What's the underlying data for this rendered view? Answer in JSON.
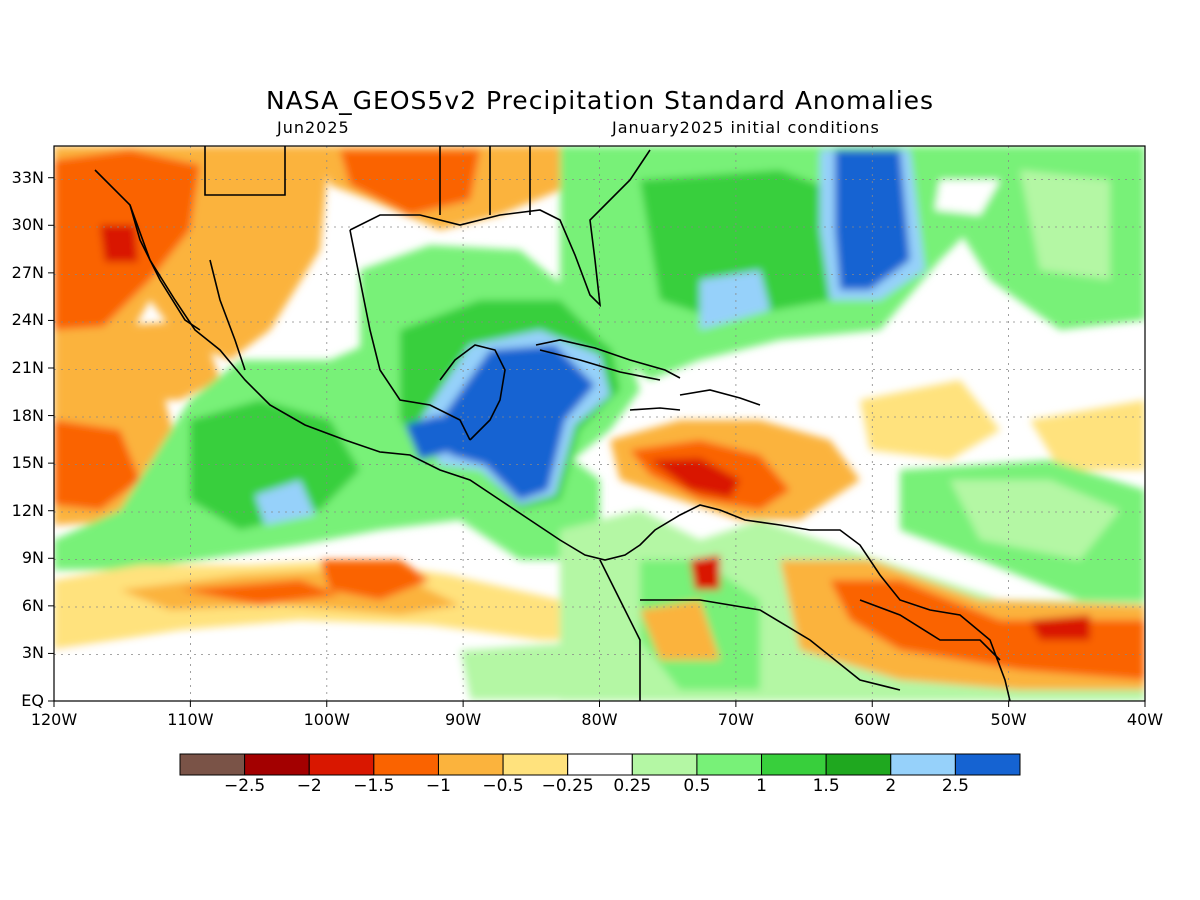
{
  "title": "NASA_GEOS5v2 Precipitation Standard Anomalies",
  "subtitle_left": "Jun2025",
  "subtitle_right": "January2025 initial conditions",
  "lat_ticks": [
    "33N",
    "30N",
    "27N",
    "24N",
    "21N",
    "18N",
    "15N",
    "12N",
    "9N",
    "6N",
    "3N",
    "EQ"
  ],
  "lon_ticks": [
    "120W",
    "110W",
    "100W",
    "90W",
    "80W",
    "70W",
    "60W",
    "50W",
    "40W"
  ],
  "colorbar": {
    "labels": [
      "−2.5",
      "−2",
      "−1.5",
      "−1",
      "−0.5",
      "−0.25",
      "0.25",
      "0.5",
      "1",
      "1.5",
      "2",
      "2.5"
    ],
    "colors": [
      "#7a5347",
      "#a30000",
      "#d91700",
      "#fa6300",
      "#fbb33d",
      "#ffe27d",
      "#ffffff",
      "#b4f7a4",
      "#78f178",
      "#38cf3c",
      "#1fa81f",
      "#96d1fa",
      "#1563d2"
    ]
  },
  "map_extent": {
    "lon": [
      -120,
      -40
    ],
    "lat": [
      0,
      35
    ]
  }
}
